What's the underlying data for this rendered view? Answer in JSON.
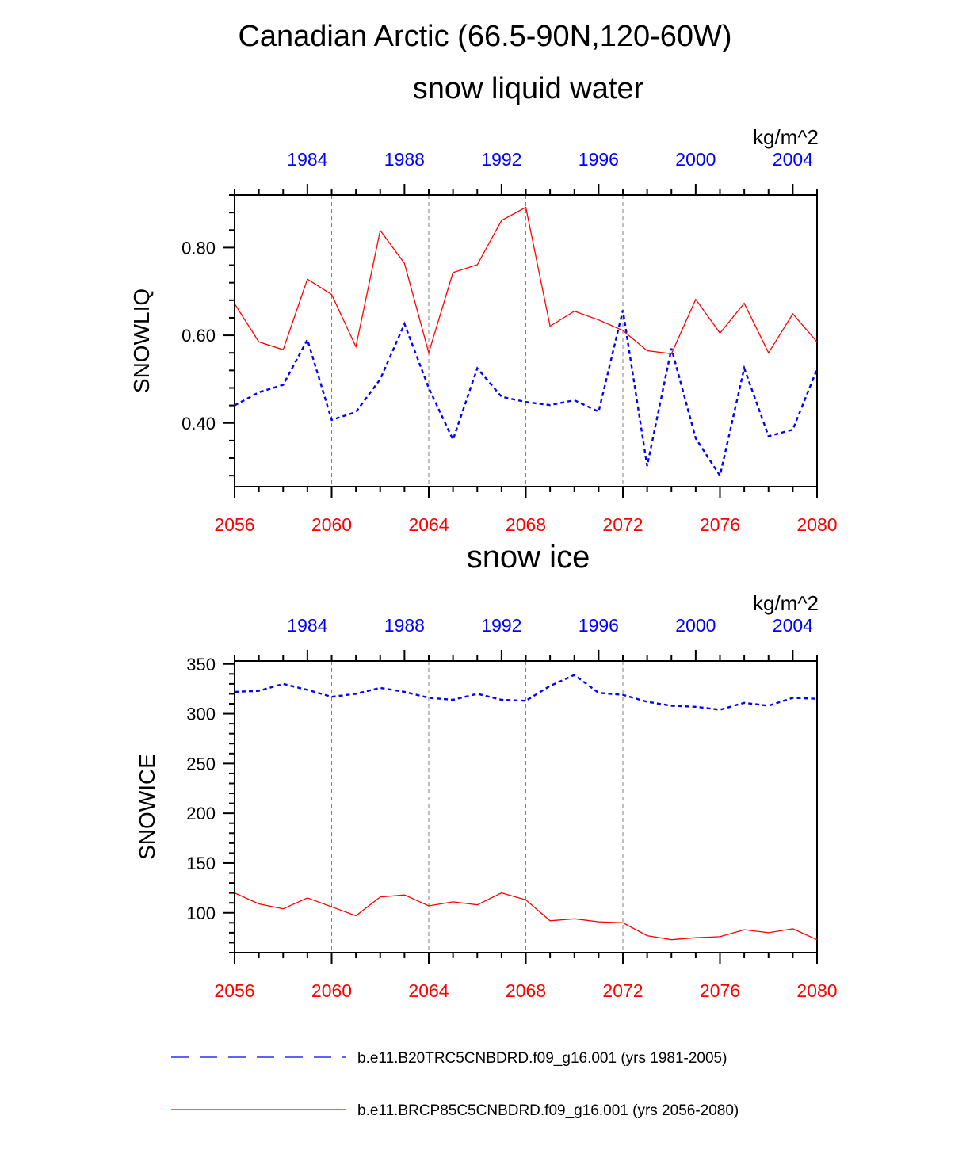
{
  "title": "Canadian Arctic (66.5-90N,120-60W)",
  "colors": {
    "red": "#ff0000",
    "blue": "#0000ff",
    "axis": "#000000",
    "grid": "#808080"
  },
  "legend": [
    {
      "label": "b.e11.B20TRC5CNBDRD.f09_g16.001 (yrs 1981-2005)",
      "color": "#0000ff",
      "style": "dashed"
    },
    {
      "label": "b.e11.BRCP85C5CNBDRD.f09_g16.001 (yrs 2056-2080)",
      "color": "#ff0000",
      "style": "solid"
    }
  ],
  "chart_data": [
    {
      "type": "line",
      "title": "snow liquid water",
      "units": "kg/m^2",
      "ylabel": "SNOWLIQ",
      "ylim": [
        0.255,
        0.92
      ],
      "yticks": [
        0.4,
        0.6,
        0.8
      ],
      "ytick_labels": [
        "0.40",
        "0.60",
        "0.80"
      ],
      "yminor_step": 0.04,
      "xlim_bottom": [
        2056,
        2080
      ],
      "xticks_bottom": [
        2056,
        2060,
        2064,
        2068,
        2072,
        2076,
        2080
      ],
      "xlim_top": [
        1981,
        2005
      ],
      "xticks_top": [
        1984,
        1988,
        1992,
        1996,
        2000,
        2004
      ],
      "grid": "vertical dashed at bottom major ticks",
      "series": [
        {
          "axis": "top",
          "color": "#0000ff",
          "style": "dashed",
          "x": [
            1981,
            1982,
            1983,
            1984,
            1985,
            1986,
            1987,
            1988,
            1989,
            1990,
            1991,
            1992,
            1993,
            1994,
            1995,
            1996,
            1997,
            1998,
            1999,
            2000,
            2001,
            2002,
            2003,
            2004,
            2005
          ],
          "values": [
            0.44,
            0.47,
            0.487,
            0.59,
            0.407,
            0.425,
            0.5,
            0.626,
            0.48,
            0.362,
            0.525,
            0.46,
            0.448,
            0.441,
            0.452,
            0.426,
            0.657,
            0.302,
            0.57,
            0.365,
            0.28,
            0.525,
            0.37,
            0.385,
            0.523
          ]
        },
        {
          "axis": "bottom",
          "color": "#ff0000",
          "style": "solid",
          "x": [
            2056,
            2057,
            2058,
            2059,
            2060,
            2061,
            2062,
            2063,
            2064,
            2065,
            2066,
            2067,
            2068,
            2069,
            2070,
            2071,
            2072,
            2073,
            2074,
            2075,
            2076,
            2077,
            2078,
            2079,
            2080
          ],
          "values": [
            0.672,
            0.585,
            0.567,
            0.728,
            0.693,
            0.574,
            0.839,
            0.764,
            0.56,
            0.743,
            0.761,
            0.862,
            0.892,
            0.621,
            0.655,
            0.635,
            0.611,
            0.565,
            0.558,
            0.682,
            0.605,
            0.673,
            0.56,
            0.649,
            0.585
          ]
        }
      ]
    },
    {
      "type": "line",
      "title": "snow ice",
      "units": "kg/m^2",
      "ylabel": "SNOWICE",
      "ylim": [
        60,
        353
      ],
      "yticks": [
        100,
        150,
        200,
        250,
        300,
        350
      ],
      "ytick_labels": [
        "100",
        "150",
        "200",
        "250",
        "300",
        "350"
      ],
      "yminor_step": 10,
      "xlim_bottom": [
        2056,
        2080
      ],
      "xticks_bottom": [
        2056,
        2060,
        2064,
        2068,
        2072,
        2076,
        2080
      ],
      "xlim_top": [
        1981,
        2005
      ],
      "xticks_top": [
        1984,
        1988,
        1992,
        1996,
        2000,
        2004
      ],
      "grid": "vertical dashed at bottom major ticks",
      "series": [
        {
          "axis": "top",
          "color": "#0000ff",
          "style": "dashed",
          "x": [
            1981,
            1982,
            1983,
            1984,
            1985,
            1986,
            1987,
            1988,
            1989,
            1990,
            1991,
            1992,
            1993,
            1994,
            1995,
            1996,
            1997,
            1998,
            1999,
            2000,
            2001,
            2002,
            2003,
            2004,
            2005
          ],
          "values": [
            322,
            323,
            330,
            324,
            317,
            320,
            326,
            322,
            316,
            314,
            320,
            314,
            313,
            328,
            339,
            321,
            319,
            312,
            308,
            307,
            304,
            311,
            308,
            316,
            315
          ]
        },
        {
          "axis": "bottom",
          "color": "#ff0000",
          "style": "solid",
          "x": [
            2056,
            2057,
            2058,
            2059,
            2060,
            2061,
            2062,
            2063,
            2064,
            2065,
            2066,
            2067,
            2068,
            2069,
            2070,
            2071,
            2072,
            2073,
            2074,
            2075,
            2076,
            2077,
            2078,
            2079,
            2080
          ],
          "values": [
            120,
            109,
            104,
            115,
            106,
            97,
            116,
            118,
            107,
            111,
            108,
            120,
            113,
            92,
            94,
            91,
            90,
            77,
            73,
            75,
            76,
            83,
            80,
            84,
            73
          ]
        }
      ]
    }
  ]
}
